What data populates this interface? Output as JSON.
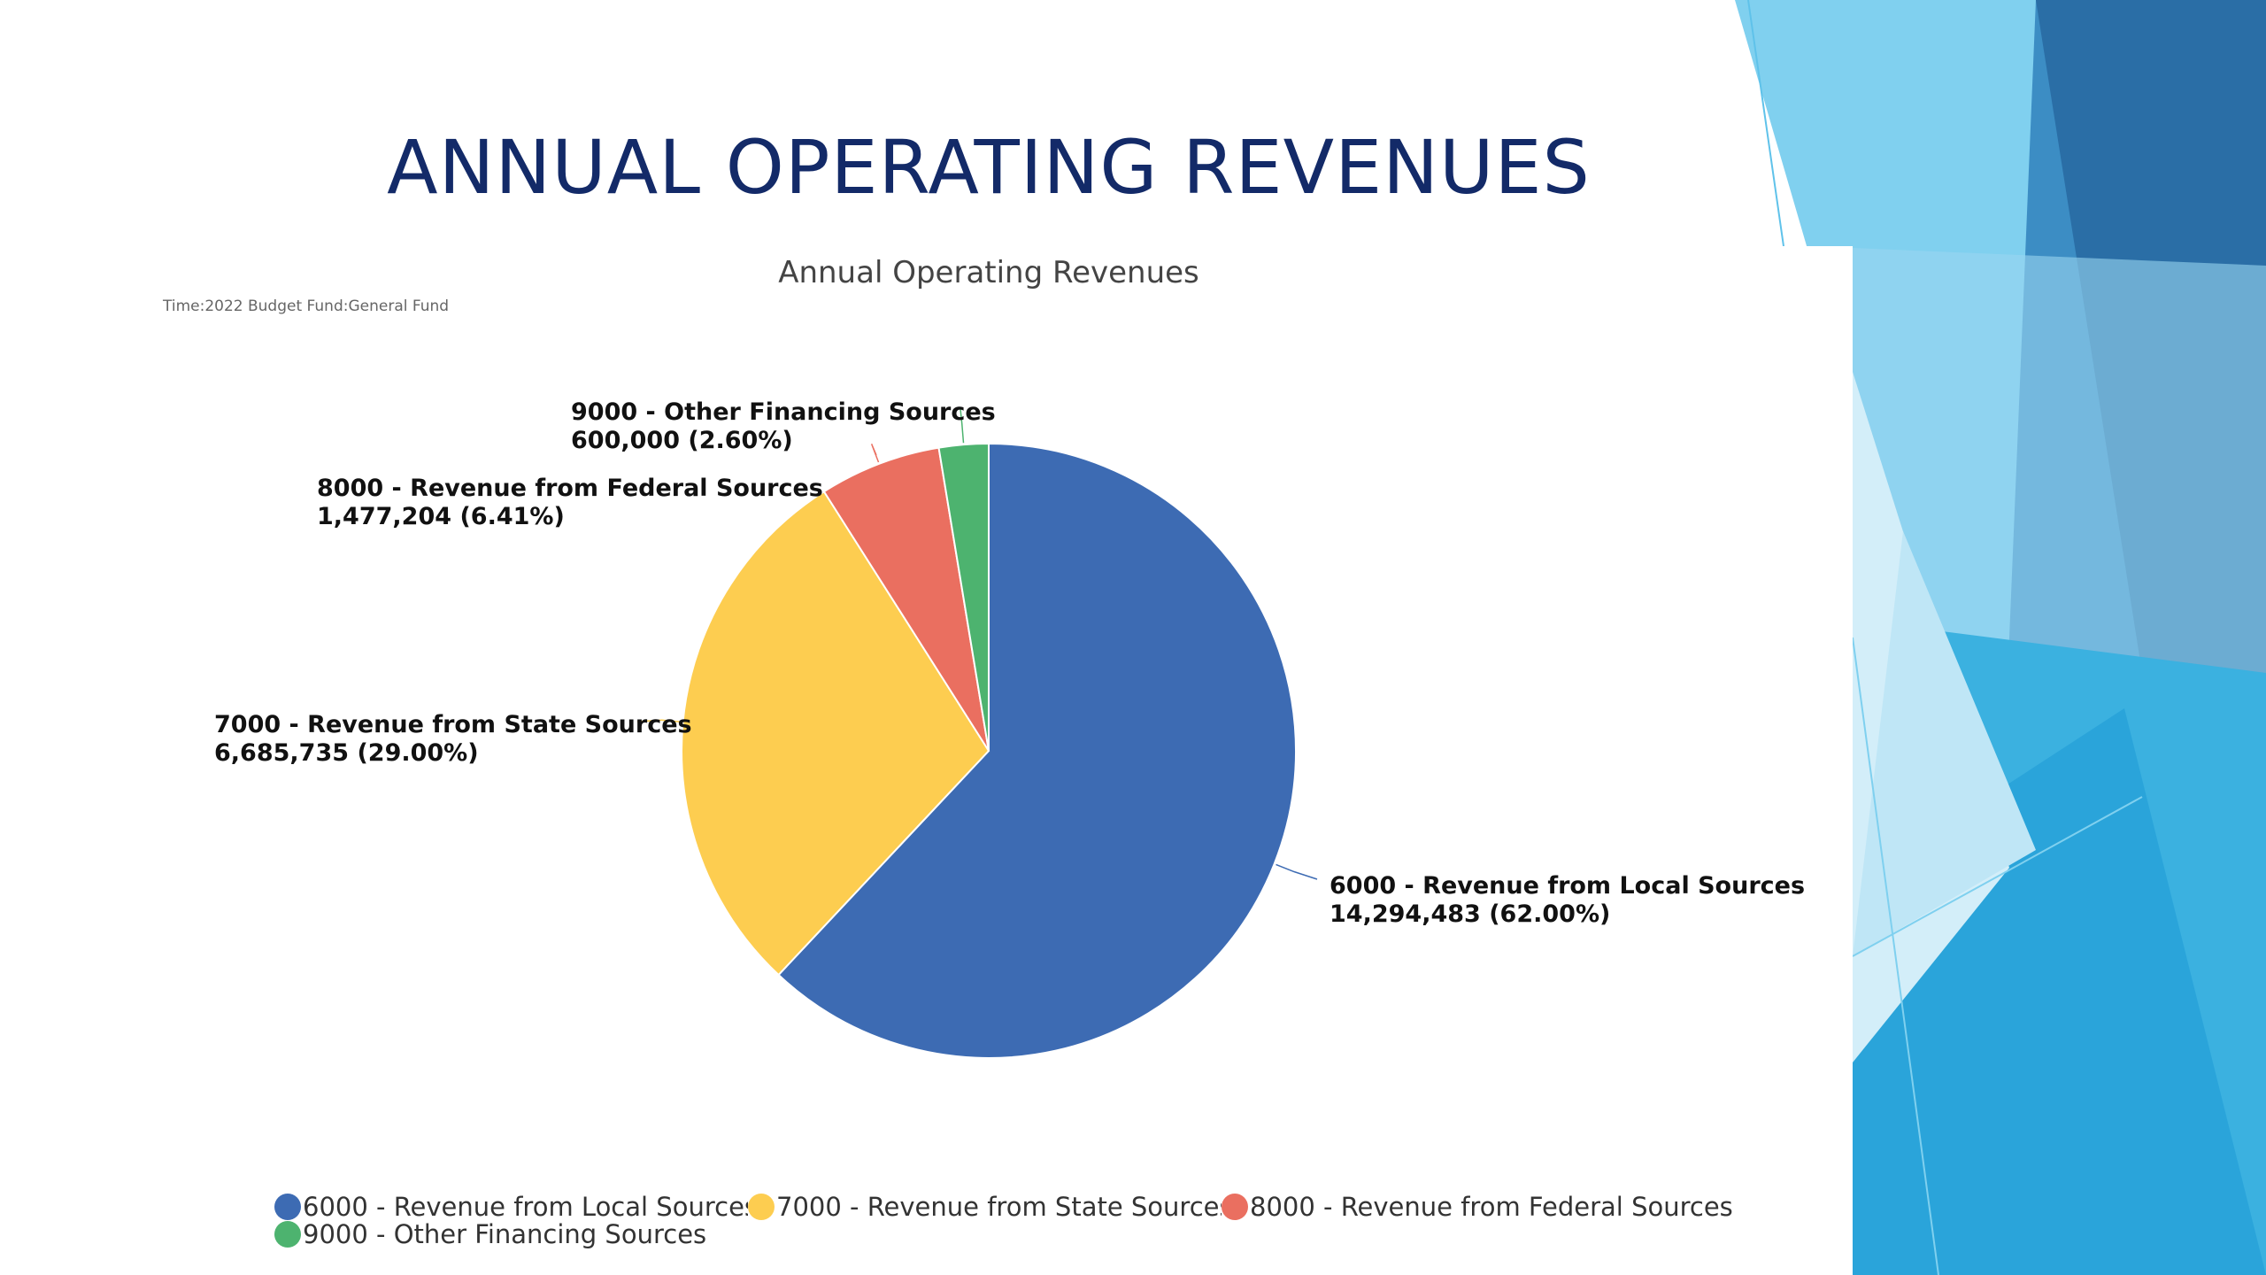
{
  "slide": {
    "title": "ANNUAL OPERATING REVENUES"
  },
  "chart_data": {
    "type": "pie",
    "title": "Annual Operating Revenues",
    "subtitle": "Time:2022 Budget Fund:General Fund",
    "slices": [
      {
        "name": "6000 - Revenue from Local Sources",
        "value": 14294483,
        "value_label": "14,294,483",
        "percent": 62.0,
        "percent_label": "(62.00%)",
        "color": "#3d6bb3"
      },
      {
        "name": "7000 - Revenue from State Sources",
        "value": 6685735,
        "value_label": "6,685,735",
        "percent": 29.0,
        "percent_label": "(29.00%)",
        "color": "#fdcd50"
      },
      {
        "name": "8000 - Revenue from Federal Sources",
        "value": 1477204,
        "value_label": "1,477,204",
        "percent": 6.41,
        "percent_label": "(6.41%)",
        "color": "#ea6f60"
      },
      {
        "name": "9000 - Other Financing Sources",
        "value": 600000,
        "value_label": "600,000",
        "percent": 2.6,
        "percent_label": "(2.60%)",
        "color": "#4db36f"
      }
    ],
    "legend": {
      "placement": "bottom",
      "items": [
        "6000 - Revenue from Local Sources",
        "7000 - Revenue from State Sources",
        "8000 - Revenue from Federal Sources",
        "9000 - Other Financing Sources"
      ]
    }
  }
}
